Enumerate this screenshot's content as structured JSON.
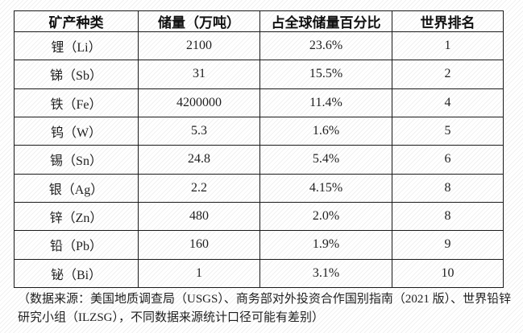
{
  "table": {
    "headers": [
      "矿产种类",
      "储量（万吨）",
      "占全球储量百分比",
      "世界排名"
    ],
    "rows": [
      [
        "锂（Li）",
        "2100",
        "23.6%",
        "1"
      ],
      [
        "锑（Sb）",
        "31",
        "15.5%",
        "2"
      ],
      [
        "铁（Fe）",
        "4200000",
        "11.4%",
        "4"
      ],
      [
        "钨（W）",
        "5.3",
        "1.6%",
        "5"
      ],
      [
        "锡（Sn）",
        "24.8",
        "5.4%",
        "6"
      ],
      [
        "银（Ag）",
        "2.2",
        "4.15%",
        "8"
      ],
      [
        "锌（Zn）",
        "480",
        "2.0%",
        "8"
      ],
      [
        "铅（Pb）",
        "160",
        "1.9%",
        "9"
      ],
      [
        "铋（Bi）",
        "1",
        "3.1%",
        "10"
      ]
    ]
  },
  "footer": {
    "note": "（数据来源：美国地质调查局（USGS）、商务部对外投资合作国别指南（2021 版）、世界铅锌研究小组（ILZSG），不同数据来源统计口径可能有差别）"
  },
  "colors": {
    "text": "#1f1f1f",
    "border": "#1a1a1a",
    "background": "#ffffff",
    "hatch": "#f1f1f1"
  }
}
